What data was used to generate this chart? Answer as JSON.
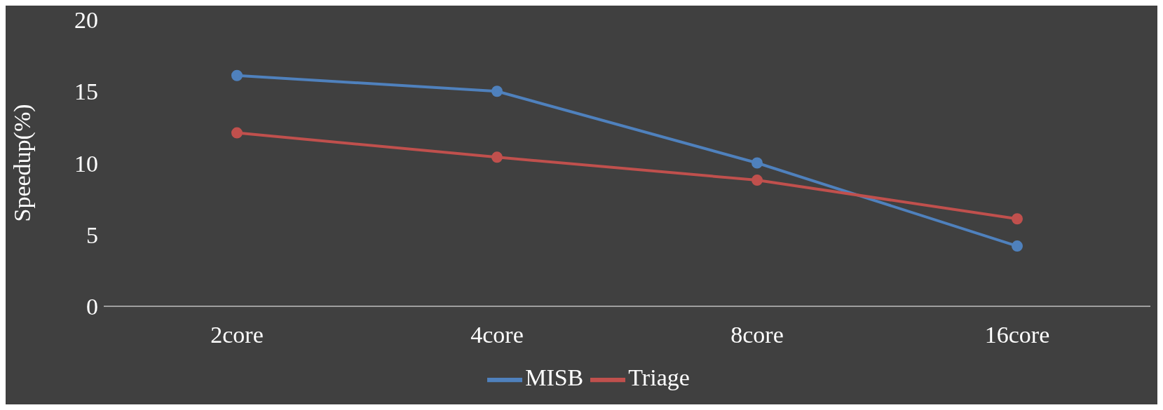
{
  "chart_data": {
    "type": "line",
    "ylabel": "Speedup(%)",
    "categories": [
      "2core",
      "4core",
      "8core",
      "16core"
    ],
    "series": [
      {
        "name": "MISB",
        "color": "#4f81bd",
        "values": [
          16.1,
          15.0,
          10.0,
          4.2
        ]
      },
      {
        "name": "Triage",
        "color": "#c0504d",
        "values": [
          12.1,
          10.4,
          8.8,
          6.1
        ]
      }
    ],
    "ylim": [
      0,
      20
    ],
    "yticks": [
      0,
      5,
      10,
      15,
      20
    ],
    "grid": false,
    "legend": "bottom",
    "marker": "circle",
    "line_style": "solid"
  }
}
